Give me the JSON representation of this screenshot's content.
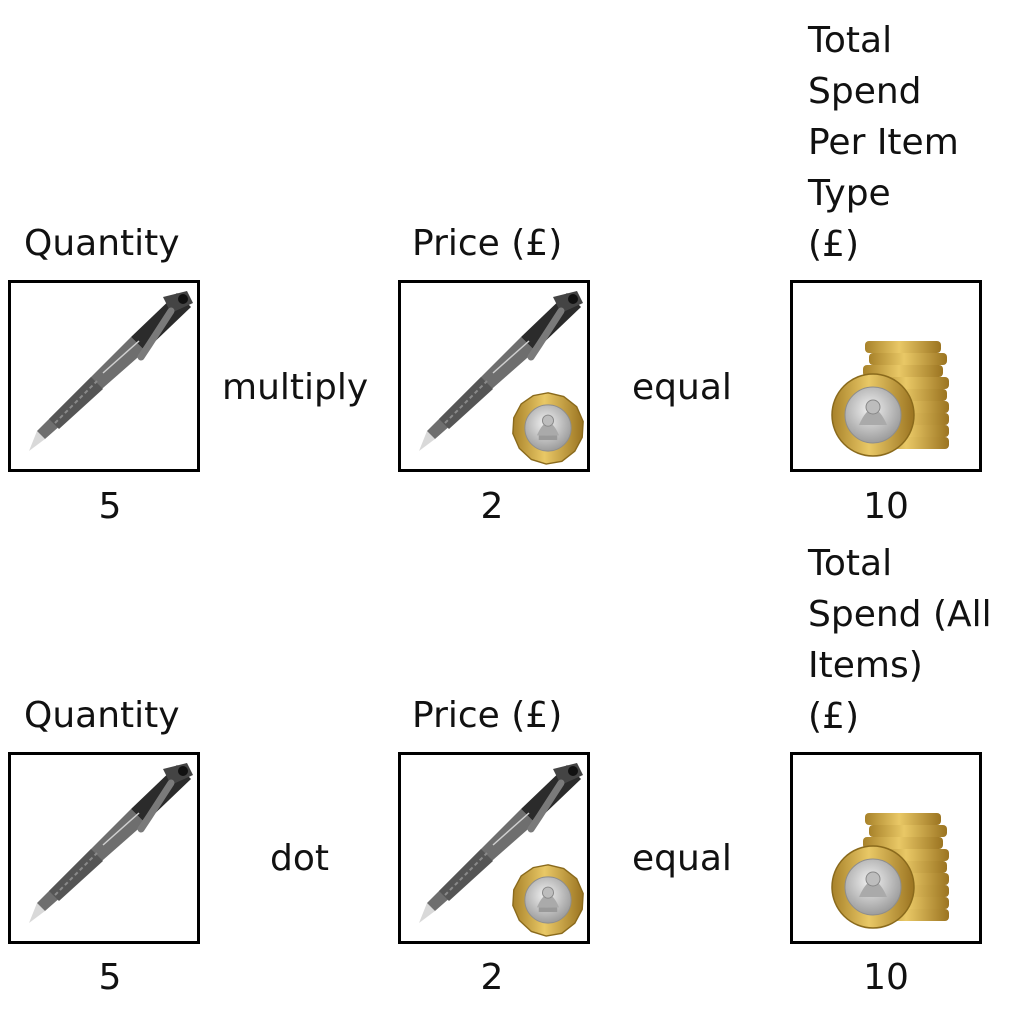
{
  "rows": [
    {
      "quantity_label": "Quantity",
      "price_label": "Price (£)",
      "total_label": "Total\nSpend\nPer Item\nType\n(£)",
      "operator": "multiply",
      "equals": "equal",
      "quantity_value": "5",
      "price_value": "2",
      "total_value": "10"
    },
    {
      "quantity_label": "Quantity",
      "price_label": "Price (£)",
      "total_label": "Total\nSpend (All\nItems)\n(£)",
      "operator": "dot",
      "equals": "equal",
      "quantity_value": "5",
      "price_value": "2",
      "total_value": "10"
    }
  ],
  "icons": {
    "pen": "pen-icon",
    "coin": "pound-coin-icon",
    "coin_stack": "coin-stack-icon"
  },
  "colors": {
    "pen_body": "#6e6e6e",
    "pen_grip": "#2b2b2b",
    "coin_gold": "#d4aa3c",
    "coin_silver": "#c8c8c8"
  }
}
